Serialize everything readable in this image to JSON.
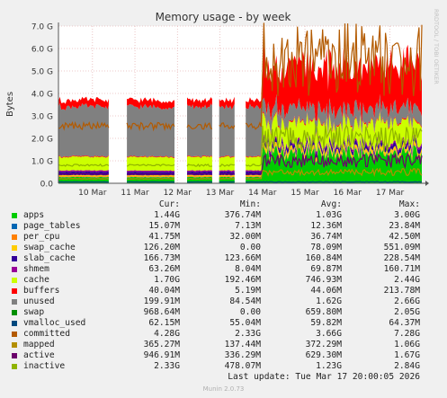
{
  "chart_data": {
    "type": "area",
    "title": "Memory usage - by week",
    "ylabel": "Bytes",
    "watermark": "RRDTOOL / TOBI OETIKER",
    "y_ticks": [
      "0.0",
      "1.0 G",
      "2.0 G",
      "3.0 G",
      "4.0 G",
      "5.0 G",
      "6.0 G",
      "7.0 G"
    ],
    "ylim_gb": [
      0,
      7
    ],
    "x_labels": [
      "10 Mar",
      "11 Mar",
      "12 Mar",
      "13 Mar",
      "14 Mar",
      "15 Mar",
      "16 Mar",
      "17 Mar"
    ],
    "x_domain_days": [
      9.2,
      17.75
    ],
    "gaps_days": [
      [
        10.4,
        10.8
      ],
      [
        11.95,
        12.2
      ],
      [
        12.85,
        12.95
      ],
      [
        13.35,
        13.6
      ]
    ],
    "stacked_series_order": [
      "apps",
      "page_tables",
      "per_cpu",
      "swap_cache",
      "slab_cache",
      "shmem",
      "cache",
      "buffers",
      "unused"
    ],
    "line_series_order": [
      "vmalloc_used",
      "committed",
      "mapped",
      "active",
      "inactive"
    ],
    "headers": {
      "cur": "Cur:",
      "min": "Min:",
      "avg": "Avg:",
      "max": "Max:"
    },
    "series": [
      {
        "name": "apps",
        "color": "#00cc00",
        "cur": "1.44G",
        "min": "376.74M",
        "avg": "1.03G",
        "max": "3.00G",
        "before_gb": 0.27,
        "after_gb": 1.3
      },
      {
        "name": "page_tables",
        "color": "#0066b3",
        "cur": "15.07M",
        "min": "7.13M",
        "avg": "12.36M",
        "max": "23.84M",
        "before_gb": 0.008,
        "after_gb": 0.015
      },
      {
        "name": "per_cpu",
        "color": "#ff8000",
        "cur": "41.75M",
        "min": "32.00M",
        "avg": "36.74M",
        "max": "42.50M",
        "before_gb": 0.035,
        "after_gb": 0.04
      },
      {
        "name": "swap_cache",
        "color": "#ffcc00",
        "cur": "126.20M",
        "min": "0.00",
        "avg": "78.09M",
        "max": "551.09M",
        "before_gb": 0.05,
        "after_gb": 0.15
      },
      {
        "name": "slab_cache",
        "color": "#330099",
        "cur": "166.73M",
        "min": "123.66M",
        "avg": "160.84M",
        "max": "228.54M",
        "before_gb": 0.15,
        "after_gb": 0.17
      },
      {
        "name": "shmem",
        "color": "#990099",
        "cur": "63.26M",
        "min": "8.04M",
        "avg": "69.87M",
        "max": "160.71M",
        "before_gb": 0.06,
        "after_gb": 0.08
      },
      {
        "name": "cache",
        "color": "#ccff00",
        "cur": "1.70G",
        "min": "192.46M",
        "avg": "746.93M",
        "max": "2.44G",
        "before_gb": 0.6,
        "after_gb": 0.9
      },
      {
        "name": "buffers",
        "color": "#ff0000",
        "cur": "40.04M",
        "min": "5.19M",
        "avg": "44.06M",
        "max": "213.78M",
        "before_gb": 0.03,
        "after_gb": 0.05
      },
      {
        "name": "unused",
        "color": "#808080",
        "cur": "199.91M",
        "min": "84.54M",
        "avg": "1.62G",
        "max": "2.66G",
        "before_gb": 2.2,
        "after_gb": 0.6
      },
      {
        "name": "swap",
        "color": "#008f00",
        "cur": "968.64M",
        "min": "0.00",
        "avg": "659.80M",
        "max": "2.05G",
        "before_gb": 0.3,
        "after_gb": 1.9
      },
      {
        "name": "vmalloc_used",
        "color": "#00487d",
        "cur": "62.15M",
        "min": "55.04M",
        "avg": "59.82M",
        "max": "64.37M",
        "before_gb": 0.06,
        "after_gb": 0.06
      },
      {
        "name": "committed",
        "color": "#b35a00",
        "cur": "4.28G",
        "min": "2.33G",
        "avg": "3.66G",
        "max": "7.28G",
        "before_gb": 2.55,
        "after_gb": 5.5
      },
      {
        "name": "mapped",
        "color": "#b38f00",
        "cur": "365.27M",
        "min": "137.44M",
        "avg": "372.29M",
        "max": "1.06G",
        "before_gb": 0.2,
        "after_gb": 0.5
      },
      {
        "name": "active",
        "color": "#6b006b",
        "cur": "946.91M",
        "min": "336.29M",
        "avg": "629.30M",
        "max": "1.67G",
        "before_gb": 0.4,
        "after_gb": 1.0
      },
      {
        "name": "inactive",
        "color": "#8fb300",
        "cur": "2.33G",
        "min": "478.07M",
        "avg": "1.23G",
        "max": "2.84G",
        "before_gb": 0.8,
        "after_gb": 2.0
      }
    ],
    "last_update": "Last update: Tue Mar 17 20:00:05 2026",
    "footer": "Munin 2.0.73"
  }
}
